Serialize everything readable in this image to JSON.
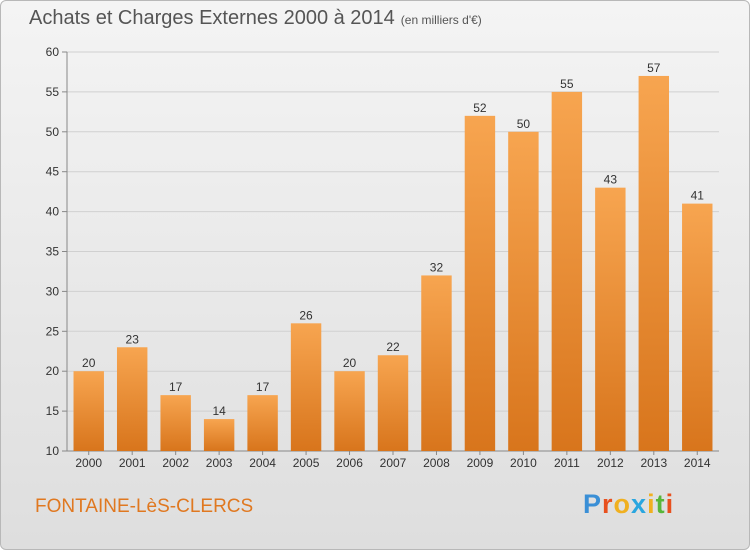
{
  "chart_data": {
    "type": "bar",
    "title": "Achats et Charges Externes 2000 à 2014",
    "subtitle": "(en milliers d'€)",
    "categories": [
      "2000",
      "2001",
      "2002",
      "2003",
      "2004",
      "2005",
      "2006",
      "2007",
      "2008",
      "2009",
      "2010",
      "2011",
      "2012",
      "2013",
      "2014"
    ],
    "values": [
      20,
      23,
      17,
      14,
      17,
      26,
      20,
      22,
      32,
      52,
      50,
      55,
      43,
      57,
      41
    ],
    "ylim": [
      10,
      60
    ],
    "yticks": [
      10,
      15,
      20,
      25,
      30,
      35,
      40,
      45,
      50,
      55,
      60
    ],
    "grid": true,
    "bar_color_top": "#f7a550",
    "bar_color_bottom": "#d8751c"
  },
  "location": "FONTAINE-LèS-CLERCS",
  "logo": {
    "text": "Proxiti",
    "letter_colors": [
      "#3a8fd6",
      "#e8501e",
      "#f0b020",
      "#2aa6df",
      "#f0b020",
      "#58b63a",
      "#e8501e"
    ]
  }
}
